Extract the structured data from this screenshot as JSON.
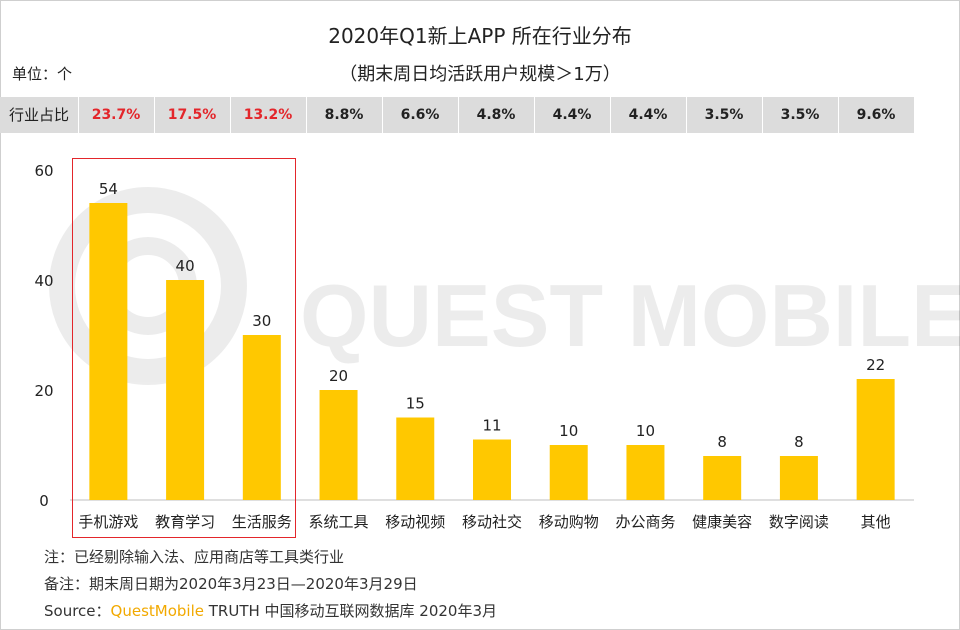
{
  "header": {
    "title": "2020年Q1新上APP 所在行业分布",
    "subtitle": "（期末周日均活跃用户规模＞1万）",
    "unit": "单位：个"
  },
  "share_row": {
    "label": "行业占比",
    "values": [
      "23.7%",
      "17.5%",
      "13.2%",
      "8.8%",
      "6.6%",
      "4.8%",
      "4.4%",
      "4.4%",
      "3.5%",
      "3.5%",
      "9.6%"
    ],
    "highlight_color": "#e3262b"
  },
  "watermark": {
    "text": "QUEST MOBILE"
  },
  "chart_data": {
    "type": "bar",
    "categories": [
      "手机游戏",
      "教育学习",
      "生活服务",
      "系统工具",
      "移动视频",
      "移动社交",
      "移动购物",
      "办公商务",
      "健康美容",
      "数字阅读",
      "其他"
    ],
    "values": [
      54,
      40,
      30,
      20,
      15,
      11,
      10,
      10,
      8,
      8,
      22
    ],
    "yticks": [
      0,
      20,
      40,
      60
    ],
    "ylim": [
      0,
      60
    ],
    "bar_color": "#ffc800",
    "highlight_box_color": "#e3262b",
    "highlighted_categories": [
      "手机游戏",
      "教育学习",
      "生活服务"
    ]
  },
  "notes": {
    "note1": "注：已经剔除输入法、应用商店等工具类行业",
    "note2": "备注：期末周日期为2020年3月23日—2020年3月29日",
    "source_prefix": "Source：",
    "source_brand": "QuestMobile",
    "source_rest": " TRUTH 中国移动互联网数据库 2020年3月"
  }
}
